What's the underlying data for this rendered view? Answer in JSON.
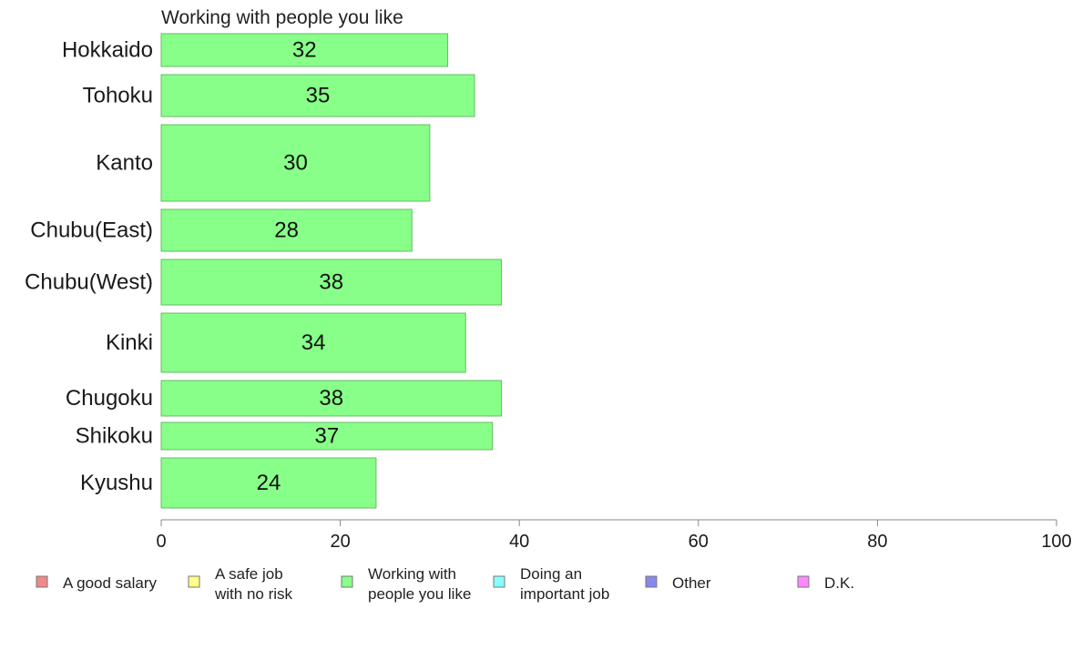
{
  "chart_data": {
    "type": "bar",
    "orientation": "horizontal",
    "title": "Working with people you like",
    "categories": [
      "Hokkaido",
      "Tohoku",
      "Kanto",
      "Chubu(East)",
      "Chubu(West)",
      "Kinki",
      "Chugoku",
      "Shikoku",
      "Kyushu"
    ],
    "values": [
      32,
      35,
      30,
      28,
      38,
      34,
      38,
      37,
      24
    ],
    "xlim": [
      0,
      100
    ],
    "xticks": [
      "0",
      "20",
      "40",
      "60",
      "80",
      "100"
    ],
    "grid": false,
    "bar_color": "#88ff88",
    "bar_edge_color": "#66bb66",
    "legend_placement": "bottom",
    "legend": [
      {
        "lines": [
          "A good salary"
        ],
        "color": "#f08888"
      },
      {
        "lines": [
          "A safe job",
          "with no risk"
        ],
        "color": "#ffff88"
      },
      {
        "lines": [
          "Working with",
          "people you like"
        ],
        "color": "#88ff88"
      },
      {
        "lines": [
          "Doing an",
          "important job"
        ],
        "color": "#88ffff"
      },
      {
        "lines": [
          "Other"
        ],
        "color": "#8888ee"
      },
      {
        "lines": [
          "D.K."
        ],
        "color": "#ff88ff"
      }
    ]
  }
}
